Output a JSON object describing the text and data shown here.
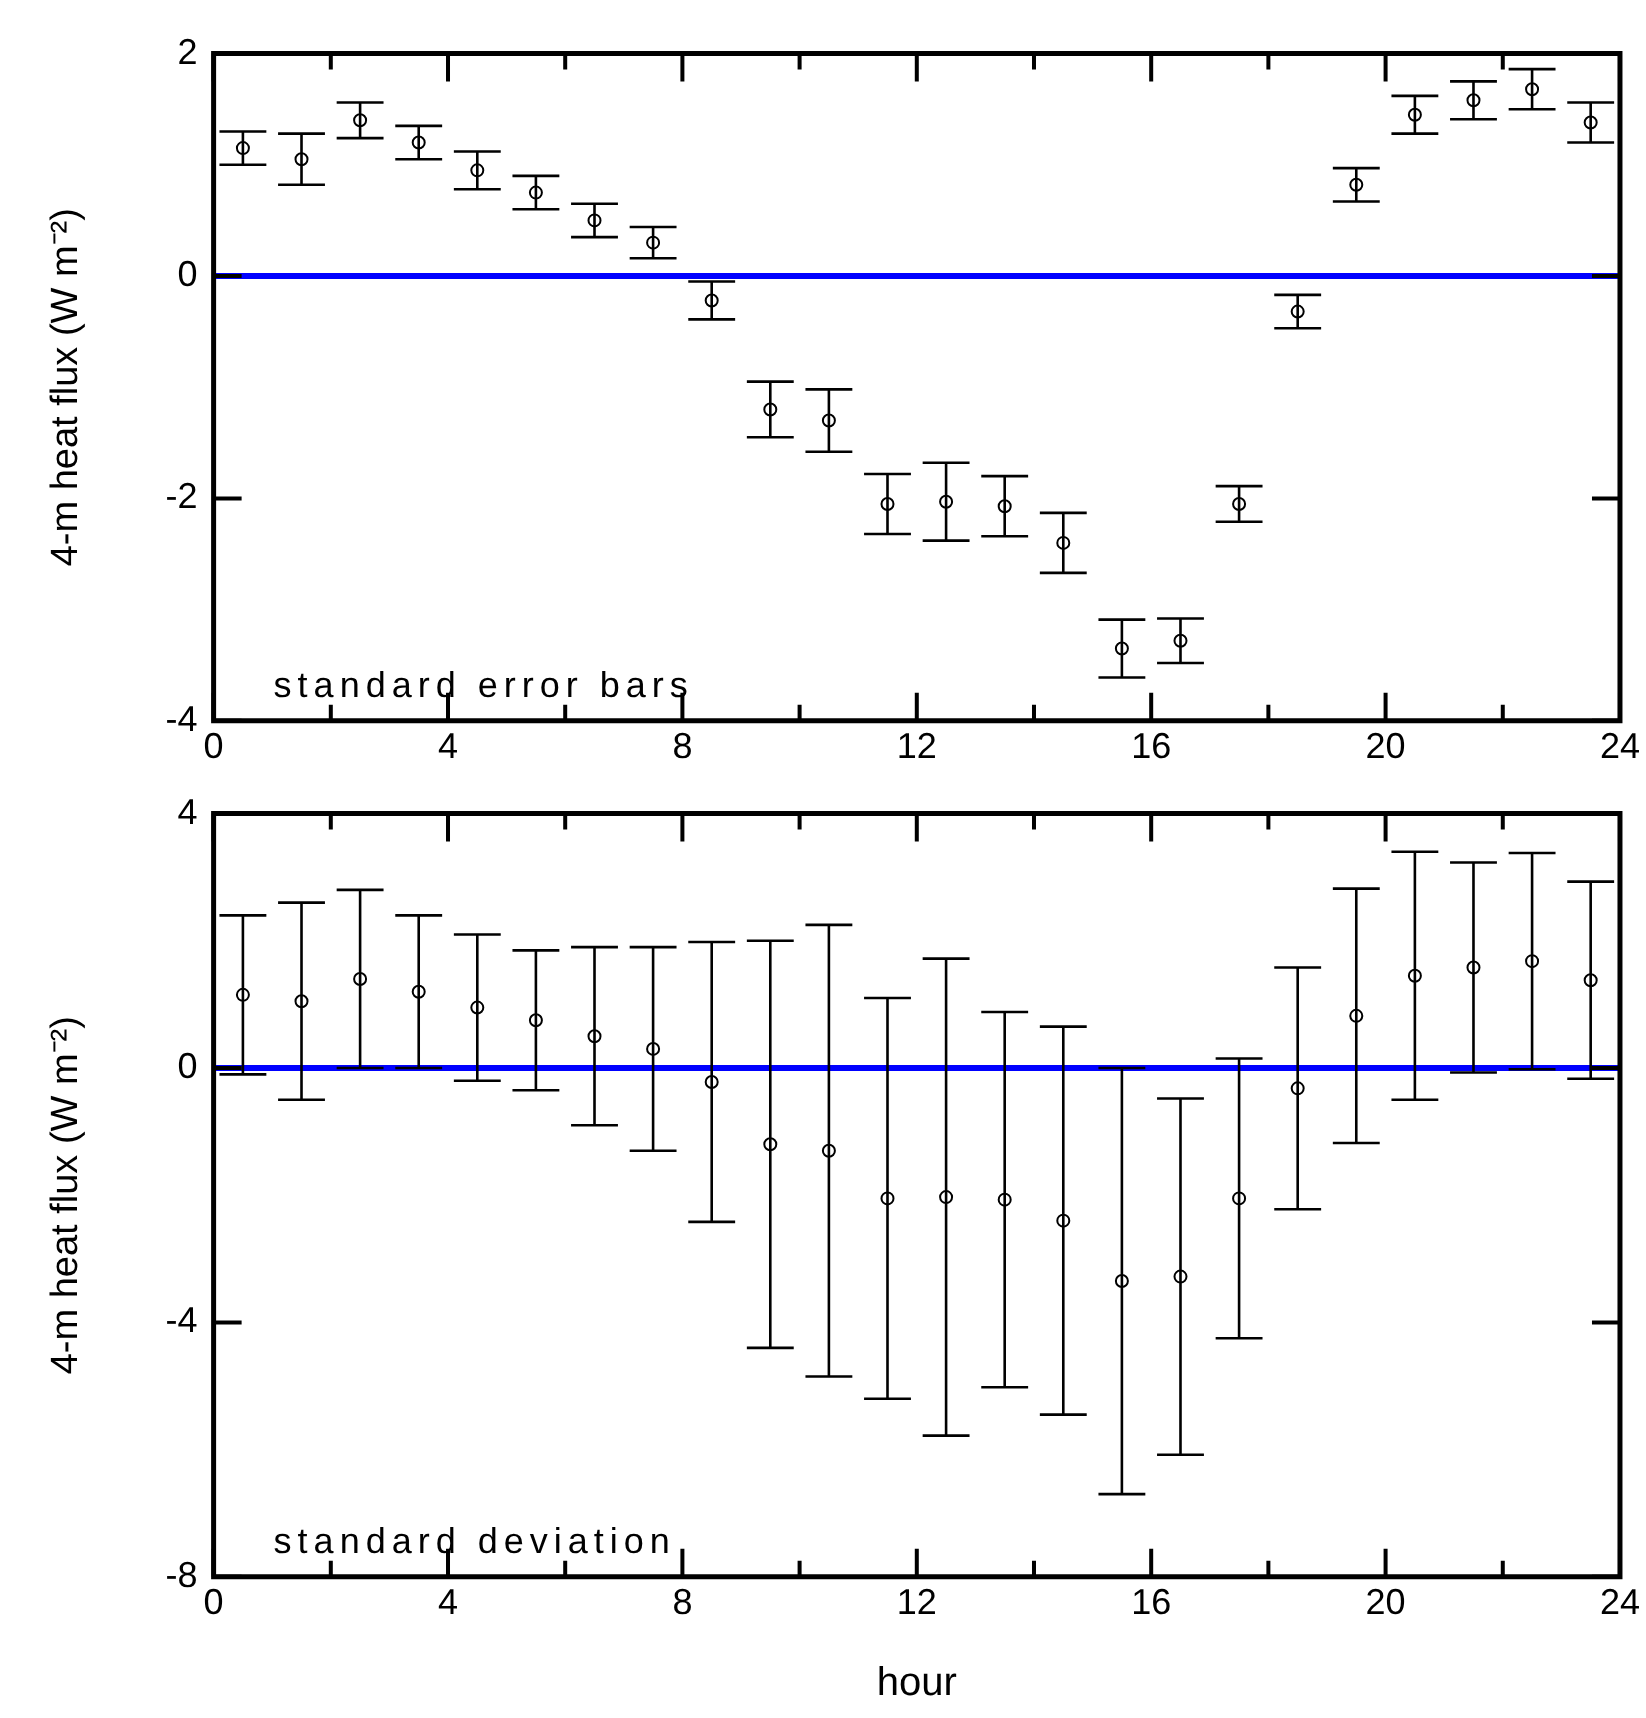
{
  "chart_data": [
    {
      "type": "scatter",
      "ylabel": "4-m heat flux (W m⁻²)",
      "annotations": [
        "standard error bars"
      ],
      "marker": "circle",
      "grid": false,
      "xlim": [
        0,
        24
      ],
      "xticks": [
        0,
        {
          "value": 2,
          "label": null
        },
        4,
        {
          "value": 6,
          "label": null
        },
        8,
        {
          "value": 10,
          "label": null
        },
        12,
        {
          "value": 14,
          "label": null
        },
        16,
        {
          "value": 18,
          "label": null
        },
        20,
        {
          "value": 22,
          "label": null
        },
        24
      ],
      "ylim": [
        -4,
        2
      ],
      "yticks": [
        -4,
        -2,
        0,
        2
      ],
      "ref_lines": [
        {
          "axis": "y",
          "value": 0,
          "color": "#0000ff"
        }
      ],
      "x": [
        0.5,
        1.5,
        2.5,
        3.5,
        4.5,
        5.5,
        6.5,
        7.5,
        8.5,
        9.5,
        10.5,
        11.5,
        12.5,
        13.5,
        14.5,
        15.5,
        16.5,
        17.5,
        18.5,
        19.5,
        20.5,
        21.5,
        22.5,
        23.5
      ],
      "series": [
        {
          "color": "#000000",
          "values": [
            1.15,
            1.05,
            1.4,
            1.2,
            0.95,
            0.75,
            0.5,
            0.3,
            -0.22,
            -1.2,
            -1.3,
            -2.05,
            -2.03,
            -2.07,
            -2.4,
            -3.35,
            -3.28,
            -2.05,
            -0.32,
            0.82,
            1.45,
            1.58,
            1.68,
            1.38
          ],
          "errors": [
            0.15,
            0.23,
            0.16,
            0.15,
            0.17,
            0.15,
            0.15,
            0.14,
            0.17,
            0.25,
            0.28,
            0.27,
            0.35,
            0.27,
            0.27,
            0.26,
            0.2,
            0.16,
            0.15,
            0.15,
            0.17,
            0.17,
            0.18,
            0.18
          ]
        }
      ]
    },
    {
      "type": "scatter",
      "xlabel": "hour",
      "ylabel": "4-m heat flux (W m⁻²)",
      "annotations": [
        "standard deviation"
      ],
      "marker": "circle",
      "grid": false,
      "xlim": [
        0,
        24
      ],
      "xticks": [
        0,
        {
          "value": 2,
          "label": null
        },
        4,
        {
          "value": 6,
          "label": null
        },
        8,
        {
          "value": 10,
          "label": null
        },
        12,
        {
          "value": 14,
          "label": null
        },
        16,
        {
          "value": 18,
          "label": null
        },
        20,
        {
          "value": 22,
          "label": null
        },
        24
      ],
      "ylim": [
        -8,
        4
      ],
      "yticks": [
        -8,
        -4,
        0,
        4
      ],
      "ref_lines": [
        {
          "axis": "y",
          "value": 0,
          "color": "#0000ff"
        }
      ],
      "x": [
        0.5,
        1.5,
        2.5,
        3.5,
        4.5,
        5.5,
        6.5,
        7.5,
        8.5,
        9.5,
        10.5,
        11.5,
        12.5,
        13.5,
        14.5,
        15.5,
        16.5,
        17.5,
        18.5,
        19.5,
        20.5,
        21.5,
        22.5,
        23.5
      ],
      "series": [
        {
          "color": "#000000",
          "values": [
            1.15,
            1.05,
            1.4,
            1.2,
            0.95,
            0.75,
            0.5,
            0.3,
            -0.22,
            -1.2,
            -1.3,
            -2.05,
            -2.03,
            -2.07,
            -2.4,
            -3.35,
            -3.28,
            -2.05,
            -0.32,
            0.82,
            1.45,
            1.58,
            1.68,
            1.38
          ],
          "errors": [
            1.25,
            1.55,
            1.4,
            1.2,
            1.15,
            1.1,
            1.4,
            1.6,
            2.2,
            3.2,
            3.55,
            3.15,
            3.75,
            2.95,
            3.05,
            3.35,
            2.8,
            2.2,
            1.9,
            2.0,
            1.95,
            1.65,
            1.7,
            1.55
          ]
        }
      ]
    }
  ]
}
